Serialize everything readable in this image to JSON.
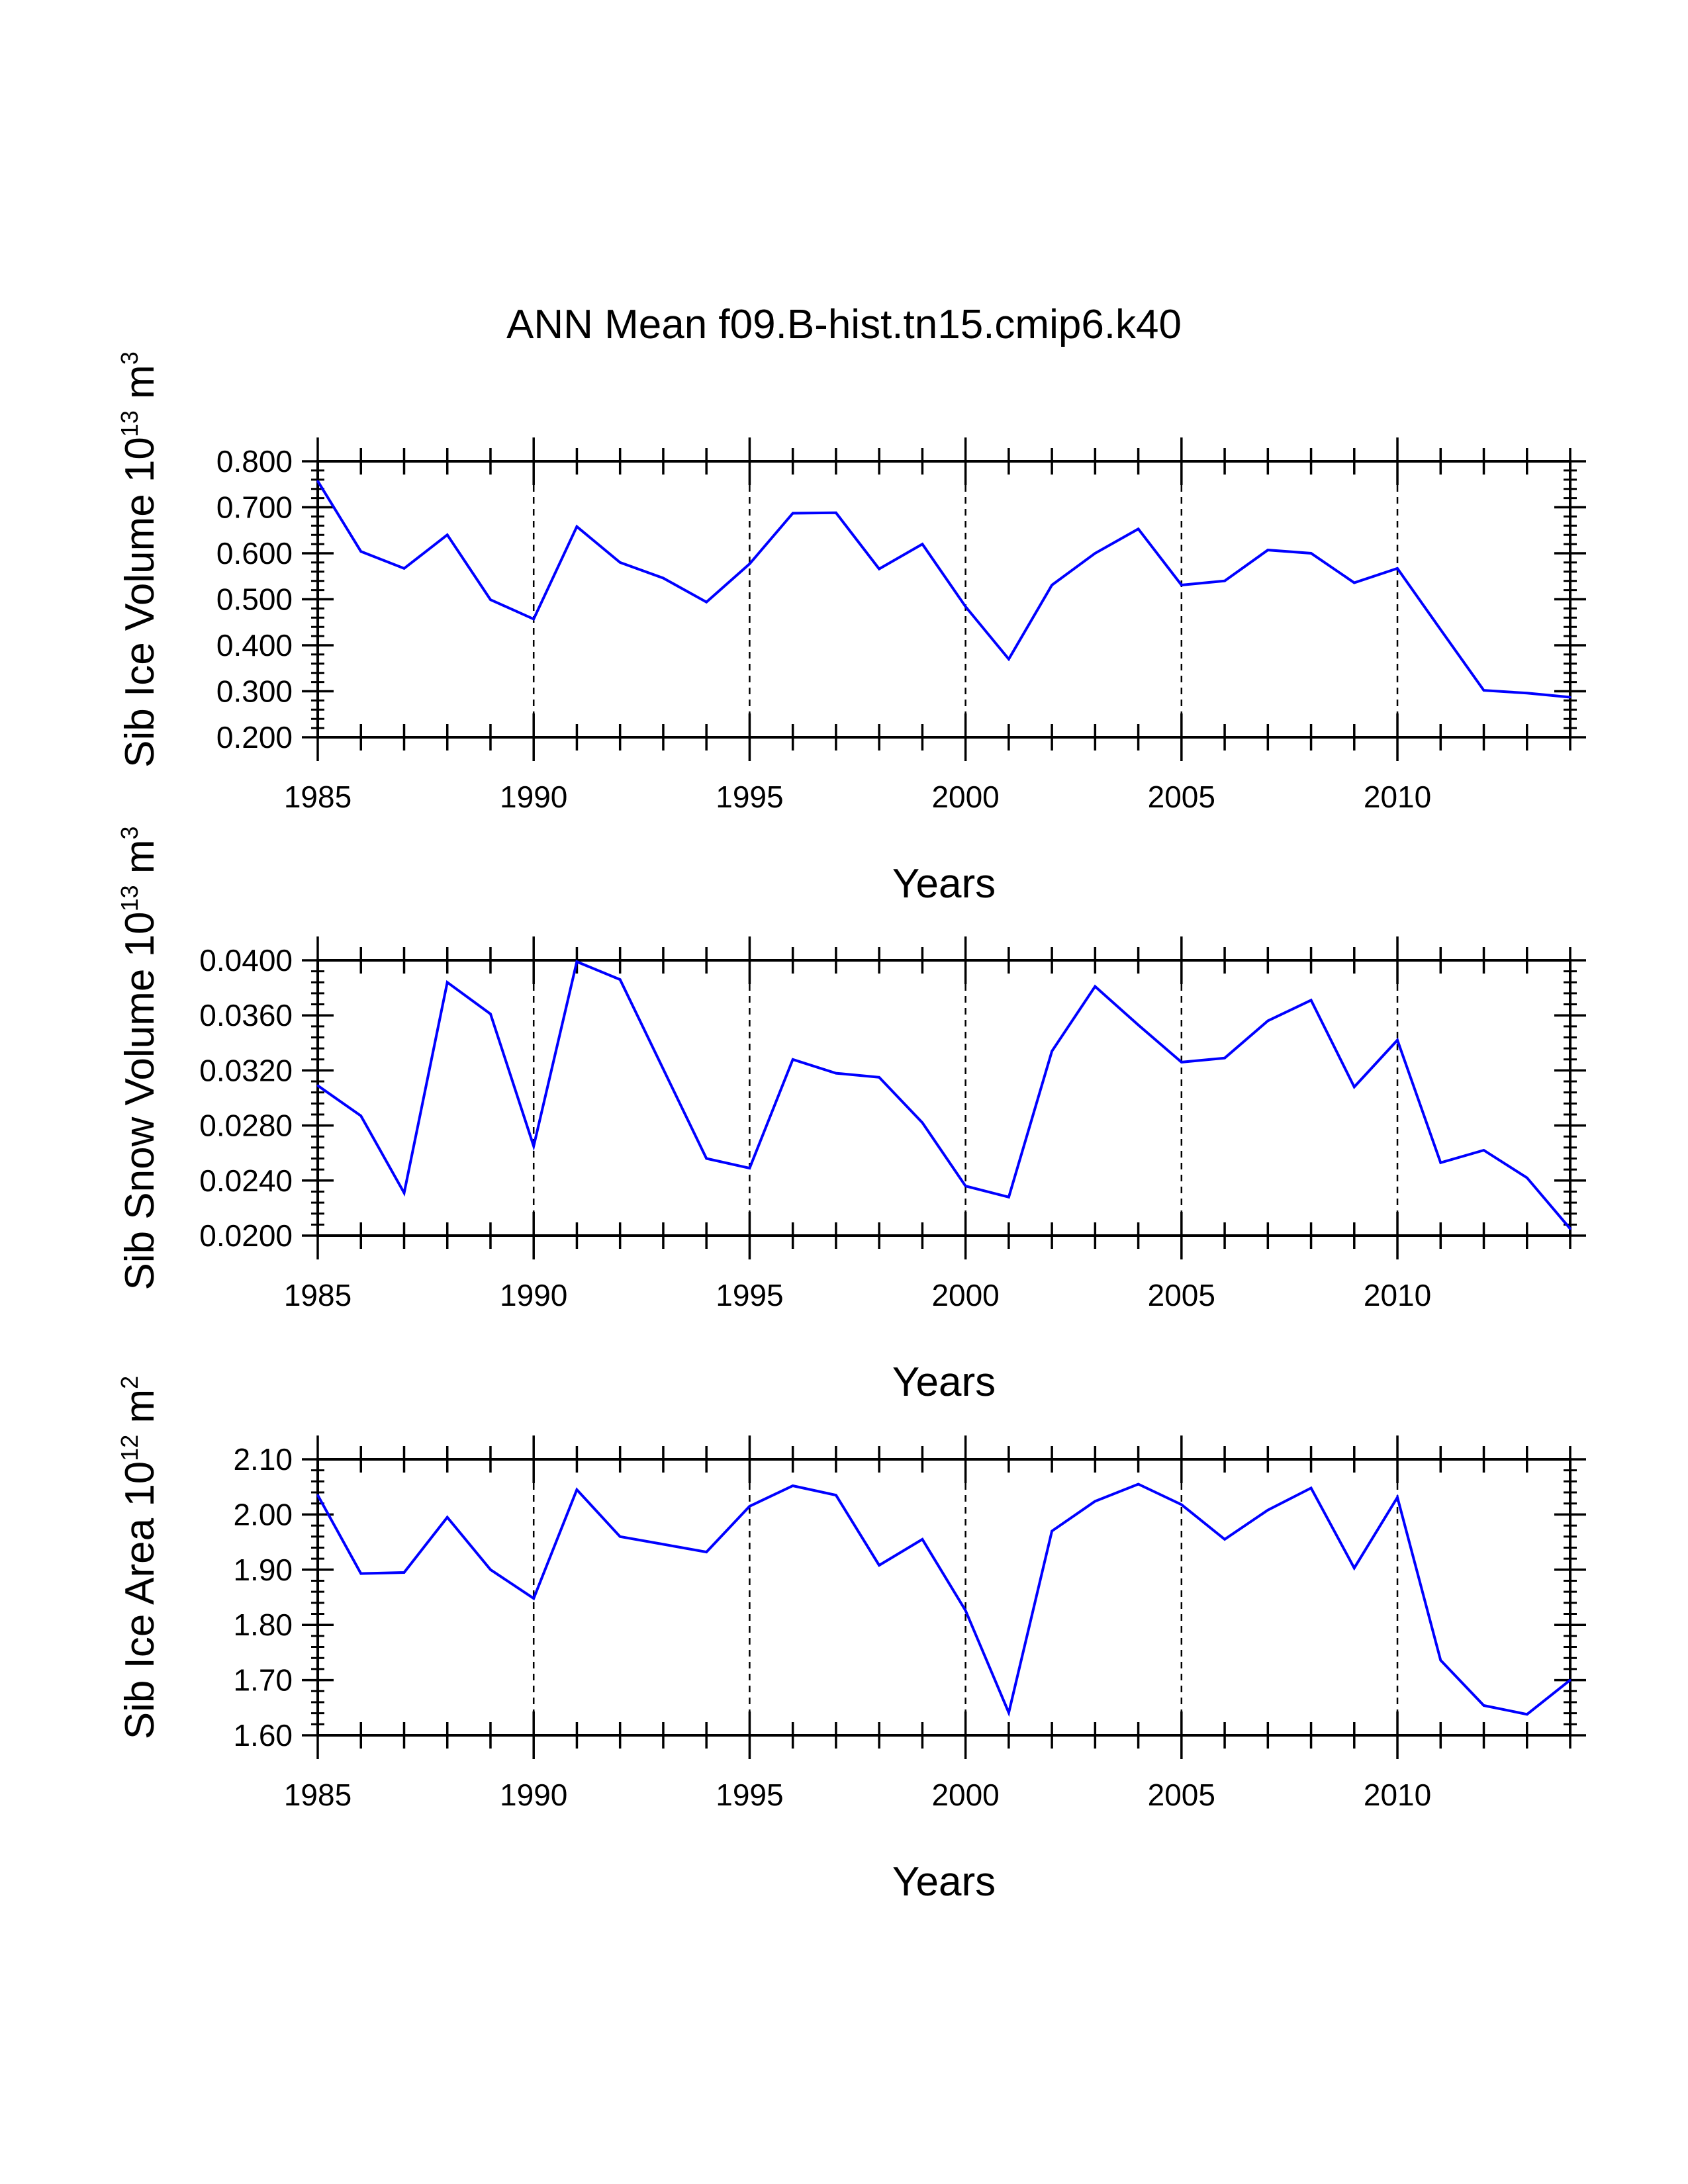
{
  "title": "ANN Mean f09.B-hist.tn15.cmip6.k40",
  "colors": {
    "line": "#0000ff",
    "axis": "#000000",
    "grid": "#000000"
  },
  "chart_data": [
    {
      "type": "line",
      "ylabel": {
        "text": "Sib Ice Volume 10",
        "exp": "13",
        "unit": " m",
        "unit_exp": "3"
      },
      "xlabel": "Years",
      "xlim": [
        1985,
        2014
      ],
      "ylim": [
        0.2,
        0.8
      ],
      "x_ticks": [
        1985,
        1990,
        1995,
        2000,
        2005,
        2010
      ],
      "y_ticks": [
        "0.200",
        "0.300",
        "0.400",
        "0.500",
        "0.600",
        "0.700",
        "0.800"
      ],
      "y_minor_step": 0.02,
      "grid_x": [
        1990,
        1995,
        2000,
        2005,
        2010
      ],
      "x": [
        1985,
        1986,
        1987,
        1988,
        1989,
        1990,
        1991,
        1992,
        1993,
        1994,
        1995,
        1996,
        1997,
        1998,
        1999,
        2000,
        2001,
        2002,
        2003,
        2004,
        2005,
        2006,
        2007,
        2008,
        2009,
        2010,
        2011,
        2012,
        2013,
        2014
      ],
      "values": [
        0.757,
        0.604,
        0.567,
        0.64,
        0.499,
        0.457,
        0.658,
        0.58,
        0.546,
        0.494,
        0.577,
        0.687,
        0.688,
        0.566,
        0.62,
        0.484,
        0.37,
        0.531,
        0.6,
        0.653,
        0.531,
        0.54,
        0.607,
        0.6,
        0.536,
        0.567,
        0.434,
        0.302,
        0.296,
        0.287
      ]
    },
    {
      "type": "line",
      "ylabel": {
        "text": "Sib Snow Volume 10",
        "exp": "13",
        "unit": " m",
        "unit_exp": "3"
      },
      "xlabel": "Years",
      "xlim": [
        1985,
        2014
      ],
      "ylim": [
        0.02,
        0.04
      ],
      "x_ticks": [
        1985,
        1990,
        1995,
        2000,
        2005,
        2010
      ],
      "y_ticks": [
        "0.0200",
        "0.0240",
        "0.0280",
        "0.0320",
        "0.0360",
        "0.0400"
      ],
      "y_minor_step": 0.0008,
      "grid_x": [
        1990,
        1995,
        2000,
        2005,
        2010
      ],
      "x": [
        1985,
        1986,
        1987,
        1988,
        1989,
        1990,
        1991,
        1992,
        1993,
        1994,
        1995,
        1996,
        1997,
        1998,
        1999,
        2000,
        2001,
        2002,
        2003,
        2004,
        2005,
        2006,
        2007,
        2008,
        2009,
        2010,
        2011,
        2012,
        2013,
        2014
      ],
      "values": [
        0.0309,
        0.0287,
        0.0231,
        0.0384,
        0.0361,
        0.0265,
        0.0399,
        0.0386,
        0.0321,
        0.0256,
        0.0249,
        0.0328,
        0.0318,
        0.0315,
        0.0282,
        0.0236,
        0.0228,
        0.0334,
        0.0381,
        0.0353,
        0.0326,
        0.0329,
        0.0356,
        0.0371,
        0.0308,
        0.0342,
        0.0253,
        0.0262,
        0.0242,
        0.0205
      ]
    },
    {
      "type": "line",
      "ylabel": {
        "text": "Sib Ice Area 10",
        "exp": "12",
        "unit": " m",
        "unit_exp": "2"
      },
      "xlabel": "Years",
      "xlim": [
        1985,
        2014
      ],
      "ylim": [
        1.6,
        2.1
      ],
      "x_ticks": [
        1985,
        1990,
        1995,
        2000,
        2005,
        2010
      ],
      "y_ticks": [
        "1.60",
        "1.70",
        "1.80",
        "1.90",
        "2.00",
        "2.10"
      ],
      "y_minor_step": 0.02,
      "grid_x": [
        1990,
        1995,
        2000,
        2005,
        2010
      ],
      "x": [
        1985,
        1986,
        1987,
        1988,
        1989,
        1990,
        1991,
        1992,
        1993,
        1994,
        1995,
        1996,
        1997,
        1998,
        1999,
        2000,
        2001,
        2002,
        2003,
        2004,
        2005,
        2006,
        2007,
        2008,
        2009,
        2010,
        2011,
        2012,
        2013,
        2014
      ],
      "values": [
        2.035,
        1.893,
        1.895,
        1.995,
        1.9,
        1.848,
        2.045,
        1.96,
        1.946,
        1.932,
        2.015,
        2.052,
        2.035,
        1.908,
        1.955,
        1.826,
        1.641,
        1.97,
        2.024,
        2.055,
        2.018,
        1.955,
        2.008,
        2.048,
        1.903,
        2.031,
        1.736,
        1.654,
        1.638,
        1.7
      ]
    }
  ]
}
